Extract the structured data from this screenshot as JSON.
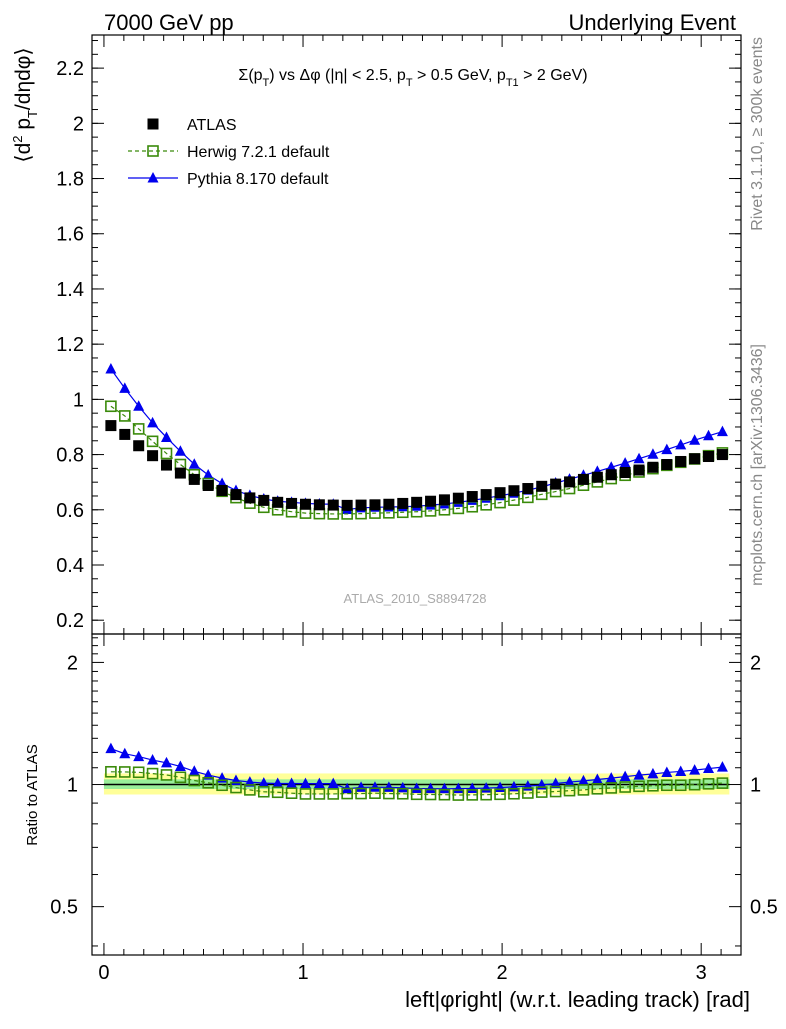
{
  "header": {
    "left": "7000 GeV pp",
    "right": "Underlying Event"
  },
  "side_labels": {
    "rivet": "Rivet 3.1.10, ≥ 300k events",
    "mcplots": "mcplots.cern.ch [arXiv:1306.3436]"
  },
  "watermark": "ATLAS_2010_S8894728",
  "chart_data": [
    {
      "type": "scatter",
      "title": "Σ(p_T) vs Δφ (|η| < 2.5, p_T > 0.5 GeV, p_T1 > 2 GeV)",
      "ylabel": "⟨d² p_T/dηdφ⟩",
      "xlabel": "",
      "xlim": [
        -0.06,
        3.2
      ],
      "ylim": [
        0.15,
        2.32
      ],
      "yticks": [
        "0.2",
        "0.4",
        "0.6",
        "0.8",
        "1",
        "1.2",
        "1.4",
        "1.6",
        "1.8",
        "2",
        "2.2"
      ],
      "legend_placement": "top-left",
      "x": [
        0.0349,
        0.1047,
        0.1745,
        0.2443,
        0.3142,
        0.384,
        0.4538,
        0.5236,
        0.5934,
        0.6632,
        0.733,
        0.8029,
        0.8727,
        0.9425,
        1.0123,
        1.0821,
        1.1519,
        1.2217,
        1.2915,
        1.3614,
        1.4312,
        1.501,
        1.5708,
        1.6406,
        1.7104,
        1.7802,
        1.85,
        1.9199,
        1.9897,
        2.0595,
        2.1293,
        2.1991,
        2.2689,
        2.3387,
        2.4086,
        2.4784,
        2.5482,
        2.618,
        2.6878,
        2.7576,
        2.8274,
        2.8972,
        2.9671,
        3.0369,
        3.1067
      ],
      "series": [
        {
          "name": "ATLAS",
          "color": "#000000",
          "marker": "square-filled",
          "values": [
            0.905,
            0.873,
            0.832,
            0.796,
            0.762,
            0.733,
            0.71,
            0.688,
            0.67,
            0.655,
            0.643,
            0.634,
            0.627,
            0.623,
            0.62,
            0.618,
            0.617,
            0.616,
            0.617,
            0.618,
            0.62,
            0.623,
            0.627,
            0.631,
            0.636,
            0.642,
            0.648,
            0.655,
            0.662,
            0.669,
            0.677,
            0.685,
            0.693,
            0.701,
            0.71,
            0.718,
            0.727,
            0.735,
            0.744,
            0.754,
            0.764,
            0.775,
            0.785,
            0.793,
            0.8
          ]
        },
        {
          "name": "Herwig 7.2.1 default",
          "color": "#3a8a0a",
          "marker": "square-open",
          "values": [
            0.975,
            0.94,
            0.893,
            0.848,
            0.804,
            0.764,
            0.727,
            0.695,
            0.667,
            0.644,
            0.624,
            0.609,
            0.6,
            0.593,
            0.588,
            0.586,
            0.585,
            0.585,
            0.586,
            0.588,
            0.589,
            0.591,
            0.593,
            0.596,
            0.6,
            0.605,
            0.611,
            0.618,
            0.626,
            0.635,
            0.645,
            0.656,
            0.666,
            0.677,
            0.689,
            0.701,
            0.713,
            0.725,
            0.737,
            0.749,
            0.761,
            0.772,
            0.784,
            0.796,
            0.806
          ]
        },
        {
          "name": "Pythia 8.170 default",
          "color": "#0000ee",
          "marker": "triangle-filled",
          "values": [
            1.11,
            1.04,
            0.975,
            0.915,
            0.862,
            0.812,
            0.765,
            0.726,
            0.695,
            0.67,
            0.652,
            0.639,
            0.631,
            0.627,
            0.623,
            0.621,
            0.62,
            0.601,
            0.607,
            0.609,
            0.61,
            0.611,
            0.613,
            0.617,
            0.621,
            0.627,
            0.634,
            0.642,
            0.651,
            0.66,
            0.671,
            0.683,
            0.697,
            0.711,
            0.725,
            0.739,
            0.754,
            0.769,
            0.785,
            0.801,
            0.818,
            0.835,
            0.852,
            0.868,
            0.883
          ]
        }
      ]
    },
    {
      "type": "scatter",
      "title": "",
      "ylabel": "Ratio to ATLAS",
      "xlabel": "left|φright| (w.r.t. leading track) [rad]",
      "xlim": [
        -0.06,
        3.2
      ],
      "ylim": [
        0.38,
        2.35
      ],
      "log_y": true,
      "yticks": [
        "0.5",
        "1",
        "2"
      ],
      "xticks": [
        "0",
        "1",
        "2",
        "3"
      ],
      "bands": [
        {
          "name": "stat+syst",
          "color": "#ffff99",
          "low": 0.945,
          "high": 1.065
        },
        {
          "name": "stat",
          "color": "#99ee99",
          "low": 0.975,
          "high": 1.03
        }
      ],
      "series": [
        {
          "name": "Herwig 7.2.1 default",
          "color": "#3a8a0a",
          "marker": "square-open",
          "values": [
            1.075,
            1.074,
            1.072,
            1.064,
            1.056,
            1.042,
            1.023,
            1.01,
            0.996,
            0.983,
            0.97,
            0.96,
            0.957,
            0.952,
            0.948,
            0.948,
            0.948,
            0.95,
            0.95,
            0.952,
            0.95,
            0.949,
            0.946,
            0.945,
            0.944,
            0.942,
            0.943,
            0.944,
            0.946,
            0.949,
            0.953,
            0.958,
            0.961,
            0.966,
            0.97,
            0.976,
            0.981,
            0.986,
            0.99,
            0.993,
            0.996,
            0.996,
            0.999,
            1.004,
            1.008
          ]
        },
        {
          "name": "Pythia 8.170 default",
          "color": "#0000ee",
          "marker": "triangle-filled",
          "values": [
            1.226,
            1.191,
            1.172,
            1.149,
            1.131,
            1.108,
            1.078,
            1.055,
            1.037,
            1.023,
            1.014,
            1.008,
            1.006,
            1.006,
            1.005,
            1.005,
            1.005,
            0.976,
            0.984,
            0.985,
            0.984,
            0.981,
            0.978,
            0.977,
            0.976,
            0.977,
            0.978,
            0.98,
            0.983,
            0.987,
            0.991,
            0.997,
            1.006,
            1.014,
            1.021,
            1.029,
            1.037,
            1.046,
            1.055,
            1.062,
            1.071,
            1.077,
            1.085,
            1.095,
            1.104
          ]
        }
      ]
    }
  ]
}
